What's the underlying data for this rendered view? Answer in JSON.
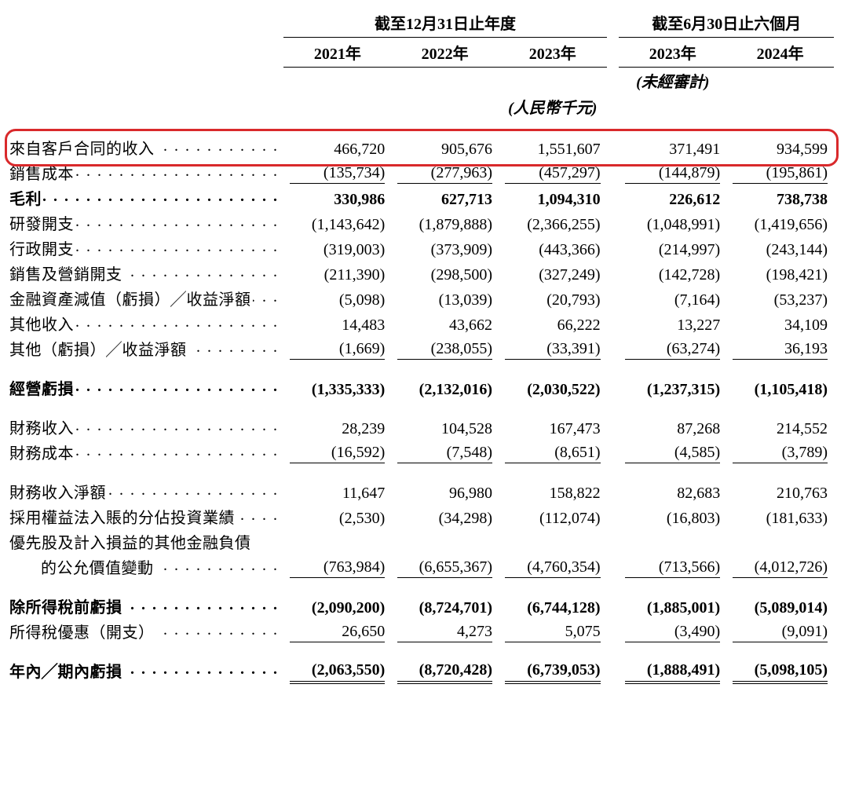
{
  "headers": {
    "spanner_annual": "截至12月31日止年度",
    "spanner_interim": "截至6月30日止六個月",
    "years": [
      "2021年",
      "2022年",
      "2023年",
      "2023年",
      "2024年"
    ],
    "unaudited": "(未經審計)",
    "currency": "(人民幣千元)"
  },
  "rows": [
    {
      "label": "來自客戶合同的收入",
      "vals": [
        "466,720",
        "905,676",
        "1,551,607",
        "371,491",
        "934,599"
      ],
      "highlight": true
    },
    {
      "label": "銷售成本",
      "vals": [
        "(135,734)",
        "(277,963)",
        "(457,297)",
        "(144,879)",
        "(195,861)"
      ],
      "underline": true
    },
    {
      "label": "毛利",
      "vals": [
        "330,986",
        "627,713",
        "1,094,310",
        "226,612",
        "738,738"
      ],
      "bold": true
    },
    {
      "label": "研發開支",
      "vals": [
        "(1,143,642)",
        "(1,879,888)",
        "(2,366,255)",
        "(1,048,991)",
        "(1,419,656)"
      ]
    },
    {
      "label": "行政開支",
      "vals": [
        "(319,003)",
        "(373,909)",
        "(443,366)",
        "(214,997)",
        "(243,144)"
      ]
    },
    {
      "label": "銷售及營銷開支",
      "vals": [
        "(211,390)",
        "(298,500)",
        "(327,249)",
        "(142,728)",
        "(198,421)"
      ]
    },
    {
      "label": "金融資產減值（虧損）╱收益淨額",
      "vals": [
        "(5,098)",
        "(13,039)",
        "(20,793)",
        "(7,164)",
        "(53,237)"
      ]
    },
    {
      "label": "其他收入",
      "vals": [
        "14,483",
        "43,662",
        "66,222",
        "13,227",
        "34,109"
      ]
    },
    {
      "label": "其他（虧損）╱收益淨額",
      "vals": [
        "(1,669)",
        "(238,055)",
        "(33,391)",
        "(63,274)",
        "36,193"
      ],
      "underline": true
    },
    {
      "label": "經營虧損",
      "vals": [
        "(1,335,333)",
        "(2,132,016)",
        "(2,030,522)",
        "(1,237,315)",
        "(1,105,418)"
      ],
      "bold": true,
      "gapBefore": true
    },
    {
      "label": "財務收入",
      "vals": [
        "28,239",
        "104,528",
        "167,473",
        "87,268",
        "214,552"
      ],
      "gapBefore": true
    },
    {
      "label": "財務成本",
      "vals": [
        "(16,592)",
        "(7,548)",
        "(8,651)",
        "(4,585)",
        "(3,789)"
      ],
      "underline": true
    },
    {
      "label": "財務收入淨額",
      "vals": [
        "11,647",
        "96,980",
        "158,822",
        "82,683",
        "210,763"
      ],
      "gapBefore": true
    },
    {
      "label": "採用權益法入賬的分佔投資業績",
      "vals": [
        "(2,530)",
        "(34,298)",
        "(112,074)",
        "(16,803)",
        "(181,633)"
      ]
    },
    {
      "label": "優先股及計入損益的其他金融負債",
      "vals": [
        "",
        "",
        "",
        "",
        ""
      ],
      "noLeader": false,
      "noVals": true
    },
    {
      "label": "的公允價值變動",
      "vals": [
        "(763,984)",
        "(6,655,367)",
        "(4,760,354)",
        "(713,566)",
        "(4,012,726)"
      ],
      "indent": true,
      "underline": true
    },
    {
      "label": "除所得稅前虧損",
      "vals": [
        "(2,090,200)",
        "(8,724,701)",
        "(6,744,128)",
        "(1,885,001)",
        "(5,089,014)"
      ],
      "bold": true,
      "gapBefore": true
    },
    {
      "label": "所得稅優惠（開支）",
      "vals": [
        "26,650",
        "4,273",
        "5,075",
        "(3,490)",
        "(9,091)"
      ],
      "underline": true
    },
    {
      "label": "年內╱期內虧損",
      "vals": [
        "(2,063,550)",
        "(8,720,428)",
        "(6,739,053)",
        "(1,888,491)",
        "(5,098,105)"
      ],
      "bold": true,
      "dbl": true,
      "gapBefore": true
    }
  ],
  "style": {
    "highlight_color": "#d9292b",
    "text_color": "#000000",
    "font_family": "Times New Roman / SimSun",
    "font_size_pt": 15
  }
}
